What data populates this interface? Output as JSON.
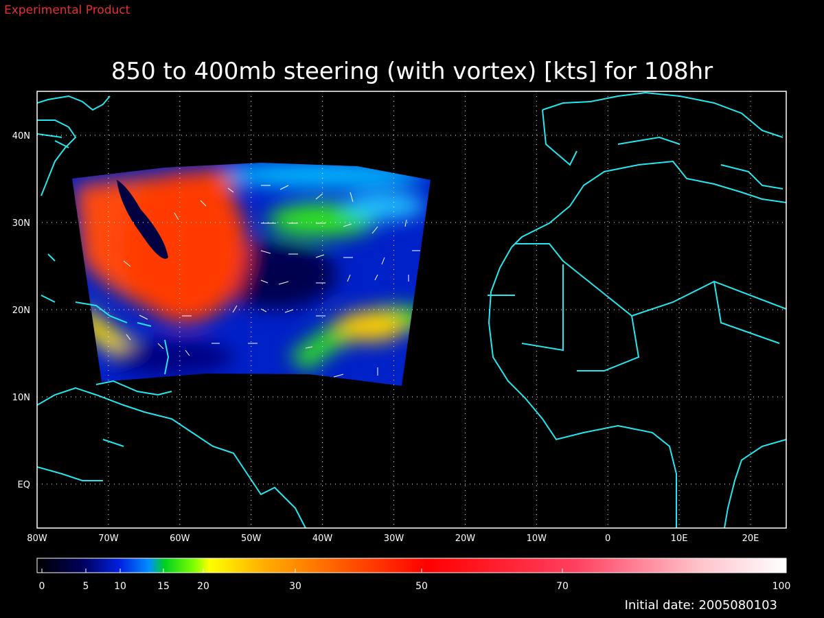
{
  "header": {
    "note": "Experimental Product",
    "title": "850 to 400mb steering (with vortex) [kts] for 108hr"
  },
  "map": {
    "lon_labels": [
      "80W",
      "70W",
      "60W",
      "50W",
      "40W",
      "30W",
      "20W",
      "10W",
      "0",
      "10E",
      "20E"
    ],
    "lat_labels": [
      "40N",
      "30N",
      "20N",
      "10N",
      "EQ"
    ]
  },
  "colorbar": {
    "labels": [
      0,
      5,
      10,
      15,
      20,
      30,
      50,
      70,
      100
    ]
  },
  "footer": {
    "initial_date": "Initial date: 2005080103"
  }
}
